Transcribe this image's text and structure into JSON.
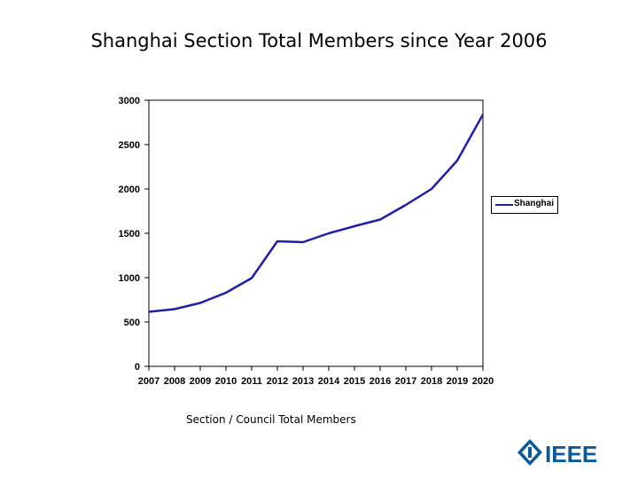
{
  "slide": {
    "title": "Shanghai Section Total Members since Year 2006",
    "caption": "Section / Council Total Members",
    "logo_text": "IEEE"
  },
  "colors": {
    "series": "#1f1fa8",
    "logo": "#0a5a9c"
  },
  "chart_data": {
    "type": "line",
    "title": "",
    "xlabel": "",
    "ylabel": "",
    "categories": [
      "2007",
      "2008",
      "2009",
      "2010",
      "2011",
      "2012",
      "2013",
      "2014",
      "2015",
      "2016",
      "2017",
      "2018",
      "2019",
      "2020"
    ],
    "series": [
      {
        "name": "Shanghai",
        "values": [
          615,
          645,
          715,
          830,
          995,
          1410,
          1400,
          1500,
          1580,
          1655,
          1820,
          2000,
          2320,
          2840
        ]
      }
    ],
    "yticks": [
      "0",
      "500",
      "1000",
      "1500",
      "2000",
      "2500",
      "3000"
    ],
    "ylim": [
      0,
      3000
    ],
    "grid": false,
    "legend": "right"
  }
}
